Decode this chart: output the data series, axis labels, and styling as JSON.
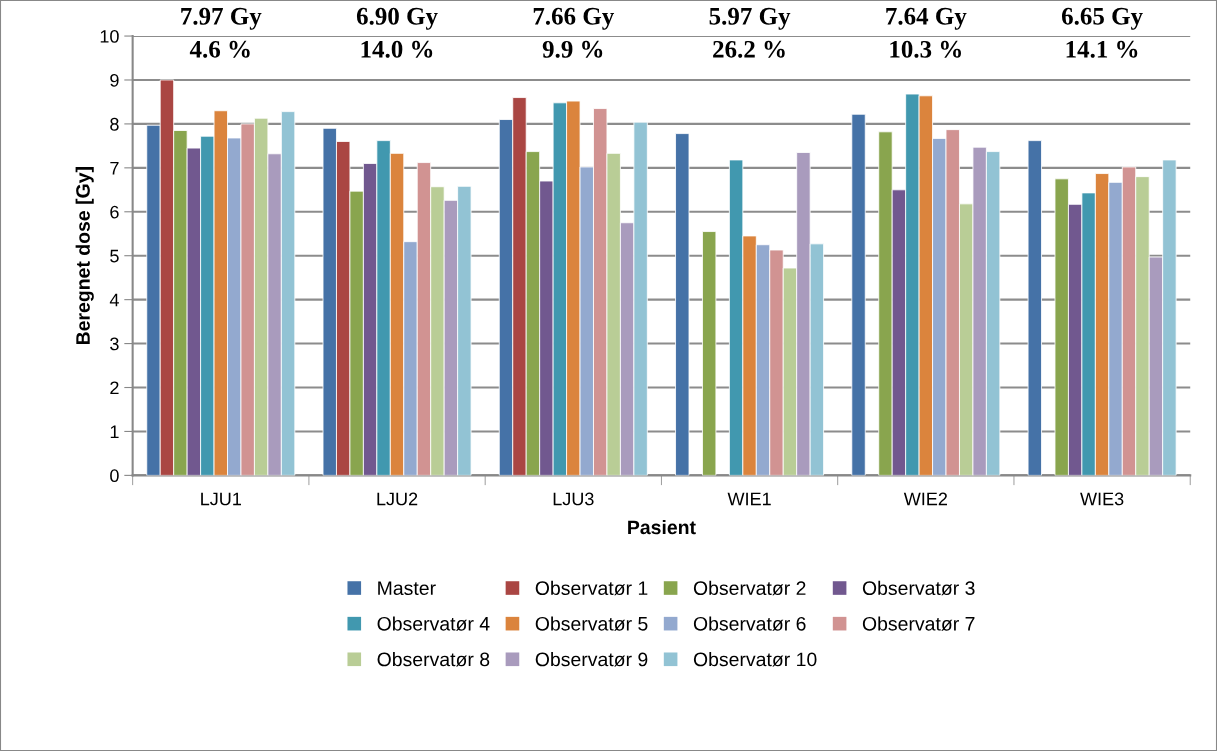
{
  "chart_data": {
    "type": "bar",
    "xlabel": "Pasient",
    "ylabel": "Beregnet dose [Gy]",
    "categories": [
      "LJU1",
      "LJU2",
      "LJU3",
      "WIE1",
      "WIE2",
      "WIE3"
    ],
    "ylim": [
      0,
      10
    ],
    "yticks": [
      0,
      1,
      2,
      3,
      4,
      5,
      6,
      7,
      8,
      9,
      10
    ],
    "grid": "y",
    "legend": "bottom",
    "series": [
      {
        "name": "Master",
        "color": "#4572a7",
        "values": [
          7.97,
          7.9,
          8.1,
          7.78,
          8.22,
          7.62
        ]
      },
      {
        "name": "Observatør 1",
        "color": "#aa4643",
        "values": [
          9.0,
          7.6,
          8.6,
          null,
          null,
          null
        ]
      },
      {
        "name": "Observatør 2",
        "color": "#89a54e",
        "values": [
          7.85,
          6.47,
          7.37,
          5.55,
          7.82,
          6.75
        ]
      },
      {
        "name": "Observatør 3",
        "color": "#71588f",
        "values": [
          7.45,
          7.1,
          6.7,
          null,
          6.5,
          6.17
        ]
      },
      {
        "name": "Observatør 4",
        "color": "#4198af",
        "values": [
          7.72,
          7.62,
          8.48,
          7.18,
          8.68,
          6.43
        ]
      },
      {
        "name": "Observatør 5",
        "color": "#db843d",
        "values": [
          8.3,
          7.33,
          8.52,
          5.45,
          8.64,
          6.87
        ]
      },
      {
        "name": "Observatør 6",
        "color": "#93a9cf",
        "values": [
          7.68,
          5.32,
          7.02,
          5.25,
          7.67,
          6.67
        ]
      },
      {
        "name": "Observatør 7",
        "color": "#d19392",
        "values": [
          8.0,
          7.12,
          8.35,
          5.13,
          7.87,
          7.02
        ]
      },
      {
        "name": "Observatør 8",
        "color": "#b9cd96",
        "values": [
          8.13,
          6.57,
          7.33,
          4.72,
          6.18,
          6.8
        ]
      },
      {
        "name": "Observatør 9",
        "color": "#a99bbd",
        "values": [
          7.32,
          6.26,
          5.75,
          7.35,
          7.47,
          4.97
        ]
      },
      {
        "name": "Observatør 10",
        "color": "#92c3d4",
        "values": [
          8.28,
          6.58,
          8.04,
          5.27,
          7.37,
          7.18
        ]
      }
    ],
    "annotations": [
      "7.97 Gy",
      "4.6 %",
      "6.90 Gy",
      "14.0 %",
      "7.66 Gy",
      "9.9 %",
      "5.97 Gy",
      "26.2 %",
      "7.64 Gy",
      "10.3 %",
      "6.65 Gy",
      "14.1 %"
    ]
  }
}
